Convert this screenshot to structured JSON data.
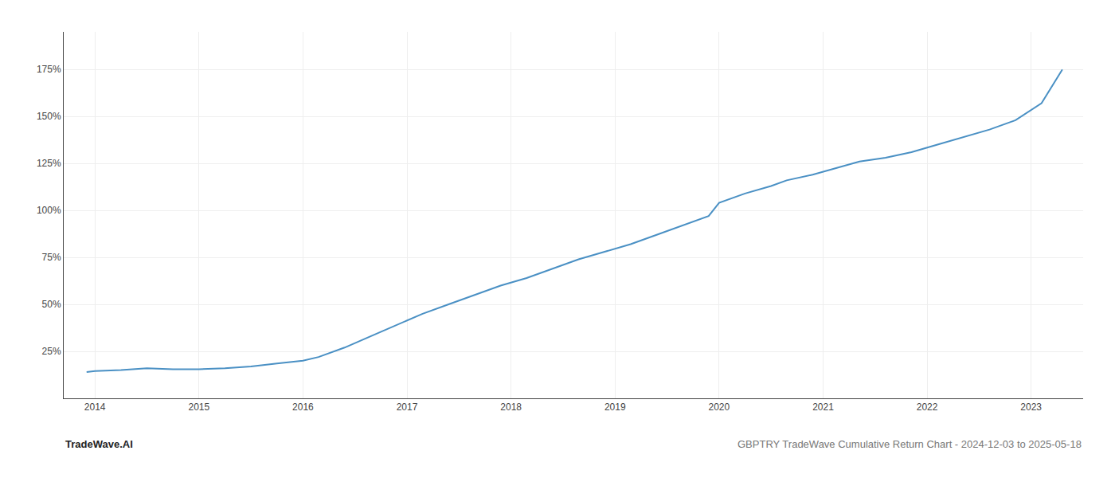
{
  "chart_data": {
    "type": "line",
    "x": [
      2013.92,
      2014.0,
      2014.25,
      2014.5,
      2014.75,
      2015.0,
      2015.25,
      2015.5,
      2015.75,
      2016.0,
      2016.15,
      2016.4,
      2016.65,
      2016.9,
      2017.15,
      2017.4,
      2017.65,
      2017.9,
      2018.15,
      2018.4,
      2018.65,
      2018.9,
      2019.15,
      2019.4,
      2019.65,
      2019.9,
      2020.0,
      2020.25,
      2020.5,
      2020.65,
      2020.9,
      2021.15,
      2021.35,
      2021.6,
      2021.85,
      2022.1,
      2022.35,
      2022.6,
      2022.85,
      2023.1,
      2023.3
    ],
    "values": [
      14,
      14.5,
      15,
      16,
      15.5,
      15.5,
      16,
      17,
      18.5,
      20,
      22,
      27,
      33,
      39,
      45,
      50,
      55,
      60,
      64,
      69,
      74,
      78,
      82,
      87,
      92,
      97,
      104,
      109,
      113,
      116,
      119,
      123,
      126,
      128,
      131,
      135,
      139,
      143,
      148,
      157,
      175
    ],
    "color": "#4a90c4",
    "xlim": [
      2013.7,
      2023.5
    ],
    "ylim": [
      0,
      195
    ],
    "xticks": [
      2014,
      2015,
      2016,
      2017,
      2018,
      2019,
      2020,
      2021,
      2022,
      2023
    ],
    "yticks": [
      {
        "value": 25,
        "label": "25%"
      },
      {
        "value": 50,
        "label": "50%"
      },
      {
        "value": 75,
        "label": "75%"
      },
      {
        "value": 100,
        "label": "100%"
      },
      {
        "value": 125,
        "label": "125%"
      },
      {
        "value": 150,
        "label": "150%"
      },
      {
        "value": 175,
        "label": "175%"
      }
    ],
    "grid": true,
    "annotations": [
      "TradeWave.AI",
      "GBPTRY TradeWave Cumulative Return Chart - 2024-12-03 to 2025-05-18"
    ]
  }
}
